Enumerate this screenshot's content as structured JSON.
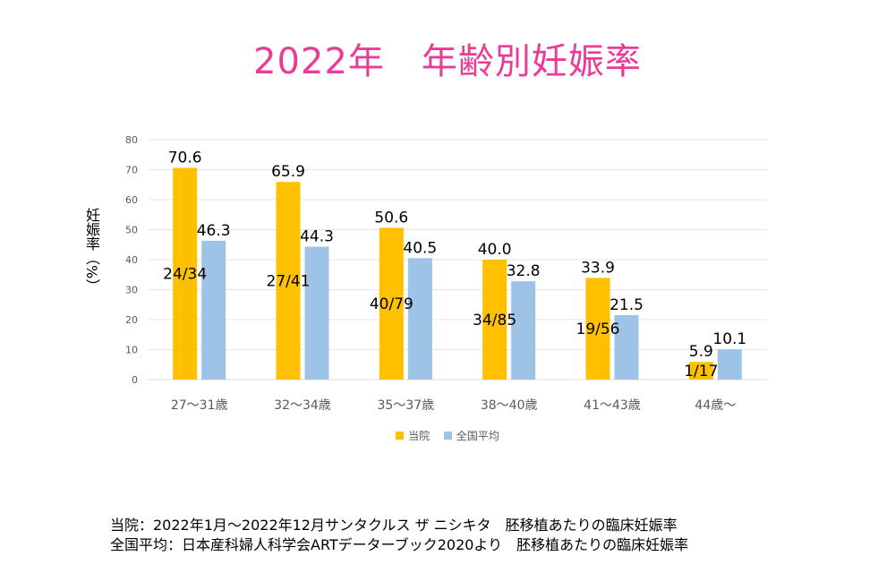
{
  "title": "2022年　年齢別妊娠率",
  "title_color": "#ea3c96",
  "ylabel": "妊娠率（%）",
  "legend": [
    {
      "label": "当院",
      "color": "#ffc000"
    },
    {
      "label": "全国平均",
      "color": "#9dc3e6"
    }
  ],
  "notes": [
    "当院：2022年1月～2022年12月サンタクルス ザ ニシキタ　胚移植あたりの臨床妊娠率",
    "全国平均：日本産科婦人科学会ARTデーターブック2020より　胚移植あたりの臨床妊娠率"
  ],
  "chart_data": {
    "type": "bar",
    "title": "2022年　年齢別妊娠率",
    "ylabel": "妊娠率（%）",
    "xlabel": "",
    "ylim": [
      0,
      80
    ],
    "yticks": [
      0,
      10,
      20,
      30,
      40,
      50,
      60,
      70,
      80
    ],
    "grid": true,
    "legend_position": "bottom",
    "categories": [
      "27～31歳",
      "32～34歳",
      "35～37歳",
      "38～40歳",
      "41～43歳",
      "44歳～"
    ],
    "series": [
      {
        "name": "当院",
        "color": "#ffc000",
        "values": [
          70.6,
          65.9,
          50.6,
          40.0,
          33.9,
          5.9
        ],
        "value_labels": [
          "70.6",
          "65.9",
          "50.6",
          "40.0",
          "33.9",
          "5.9"
        ],
        "ratios": [
          "24/34",
          "27/41",
          "40/79",
          "34/85",
          "19/56",
          "1/17"
        ]
      },
      {
        "name": "全国平均",
        "color": "#9dc3e6",
        "values": [
          46.3,
          44.3,
          40.5,
          32.8,
          21.5,
          10.1
        ],
        "value_labels": [
          "46.3",
          "44.3",
          "40.5",
          "32.8",
          "21.5",
          "10.1"
        ]
      }
    ]
  }
}
